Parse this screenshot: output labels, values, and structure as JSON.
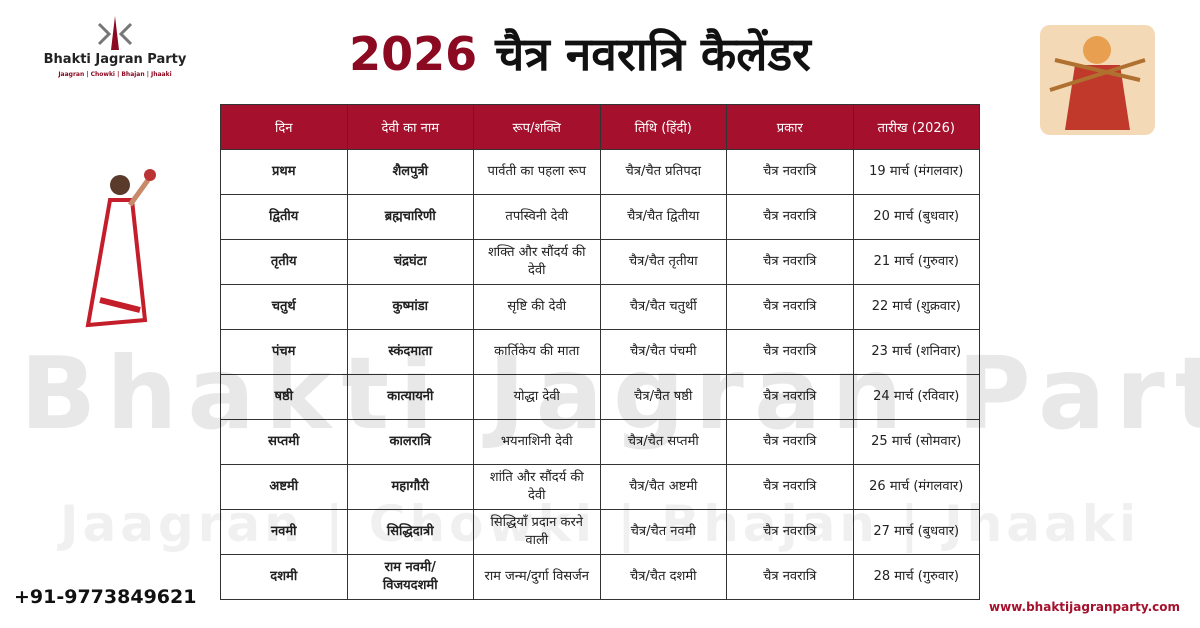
{
  "logo": {
    "name": "Bhakti Jagran Party",
    "tagline": "Jaagran | Chowki | Bhajan | Jhaaki"
  },
  "title": {
    "year": "2026",
    "text": "चैत्र नवरात्रि कैलेंडर"
  },
  "table": {
    "header": [
      "दिन",
      "देवी का नाम",
      "रूप/शक्ति",
      "तिथि (हिंदी)",
      "प्रकार",
      "तारीख (2026)"
    ],
    "rows": [
      [
        "प्रथम",
        "शैलपुत्री",
        "पार्वती का पहला रूप",
        "चैत्र/चैत प्रतिपदा",
        "चैत्र नवरात्रि",
        "19 मार्च (मंगलवार)"
      ],
      [
        "द्वितीय",
        "ब्रह्मचारिणी",
        "तपस्विनी देवी",
        "चैत्र/चैत द्वितीया",
        "चैत्र नवरात्रि",
        "20 मार्च (बुधवार)"
      ],
      [
        "तृतीय",
        "चंद्रघंटा",
        "शक्ति और सौंदर्य की देवी",
        "चैत्र/चैत तृतीया",
        "चैत्र नवरात्रि",
        "21 मार्च (गुरुवार)"
      ],
      [
        "चतुर्थ",
        "कुष्मांडा",
        "सृष्टि की देवी",
        "चैत्र/चैत चतुर्थी",
        "चैत्र नवरात्रि",
        "22 मार्च (शुक्रवार)"
      ],
      [
        "पंचम",
        "स्कंदमाता",
        "कार्तिकेय की माता",
        "चैत्र/चैत पंचमी",
        "चैत्र नवरात्रि",
        "23 मार्च (शनिवार)"
      ],
      [
        "षष्ठी",
        "कात्यायनी",
        "योद्धा देवी",
        "चैत्र/चैत षष्ठी",
        "चैत्र नवरात्रि",
        "24 मार्च (रविवार)"
      ],
      [
        "सप्तमी",
        "कालरात्रि",
        "भयनाशिनी देवी",
        "चैत्र/चैत सप्तमी",
        "चैत्र नवरात्रि",
        "25 मार्च (सोमवार)"
      ],
      [
        "अष्टमी",
        "महागौरी",
        "शांति और सौंदर्य की देवी",
        "चैत्र/चैत अष्टमी",
        "चैत्र नवरात्रि",
        "26 मार्च (मंगलवार)"
      ],
      [
        "नवमी",
        "सिद्धिदात्री",
        "सिद्धियाँ प्रदान करने वाली",
        "चैत्र/चैत नवमी",
        "चैत्र नवरात्रि",
        "27 मार्च (बुधवार)"
      ],
      [
        "दशमी",
        "राम नवमी/ विजयदशमी",
        "राम जन्म/दुर्गा विसर्जन",
        "चैत्र/चैत दशमी",
        "चैत्र नवरात्रि",
        "28 मार्च (गुरुवार)"
      ]
    ]
  },
  "watermark": {
    "name": "Bhakti Jagran Party",
    "tagline": "Jaagran | Chowki | Bhajan | Jhaaki"
  },
  "footer": {
    "phone": "+91-9773849621",
    "website": "www.bhaktijagranparty.com"
  }
}
